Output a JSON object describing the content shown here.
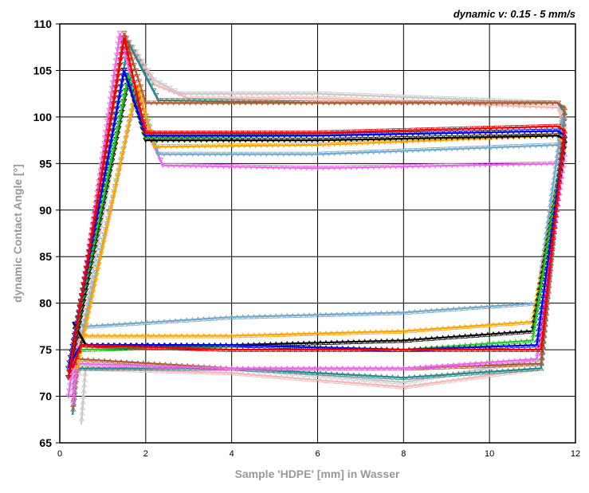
{
  "chart_data": {
    "type": "line",
    "title": "dynamic v: 0.15 - 5 mm/s",
    "xlabel": "Sample 'HDPE' [mm] in Wasser",
    "ylabel": "dynamic Contact Angle [°]",
    "xlim": [
      0,
      12
    ],
    "ylim": [
      65,
      110
    ],
    "xticks": [
      "0",
      "2",
      "4",
      "6",
      "8",
      "10",
      "12"
    ],
    "yticks": [
      "65",
      "70",
      "75",
      "80",
      "85",
      "90",
      "95",
      "100",
      "105",
      "110"
    ],
    "grid": true,
    "series": [
      {
        "name": "gray",
        "color": "#c8c8c8",
        "points": [
          [
            0.3,
            71
          ],
          [
            1.7,
            107.5
          ],
          [
            2.2,
            104
          ],
          [
            2.8,
            102.5
          ],
          [
            6,
            102.5
          ],
          [
            11.6,
            101.5
          ],
          [
            11.75,
            100
          ],
          [
            11.2,
            74
          ],
          [
            8,
            71.5
          ],
          [
            4,
            73
          ],
          [
            0.6,
            73
          ],
          [
            0.5,
            67
          ]
        ]
      },
      {
        "name": "pink",
        "color": "#f4b8b8",
        "points": [
          [
            0.3,
            72
          ],
          [
            1.5,
            109
          ],
          [
            2.2,
            103.5
          ],
          [
            3,
            102
          ],
          [
            6,
            102
          ],
          [
            11.6,
            101
          ],
          [
            11.75,
            99
          ],
          [
            11.2,
            73
          ],
          [
            8,
            71
          ],
          [
            4,
            72.5
          ],
          [
            0.5,
            73
          ],
          [
            0.3,
            71
          ]
        ]
      },
      {
        "name": "teal",
        "color": "#2a8a8a",
        "points": [
          [
            0.2,
            72
          ],
          [
            1.6,
            108
          ],
          [
            2.3,
            101.8
          ],
          [
            6,
            101.5
          ],
          [
            11.6,
            101.5
          ],
          [
            11.75,
            100.5
          ],
          [
            11.2,
            73
          ],
          [
            8,
            72
          ],
          [
            4,
            73
          ],
          [
            0.4,
            73
          ],
          [
            0.3,
            68
          ]
        ]
      },
      {
        "name": "brown",
        "color": "#b05a30",
        "points": [
          [
            0.2,
            72
          ],
          [
            1.5,
            109
          ],
          [
            2,
            101.5
          ],
          [
            6,
            101.5
          ],
          [
            11.6,
            101.5
          ],
          [
            11.75,
            101
          ],
          [
            11.2,
            73.5
          ],
          [
            8,
            73
          ],
          [
            4,
            73
          ],
          [
            0.4,
            74
          ],
          [
            0.3,
            68.5
          ]
        ]
      },
      {
        "name": "magenta",
        "color": "#ee66ee",
        "points": [
          [
            0.2,
            70
          ],
          [
            1.4,
            109
          ],
          [
            1.9,
            100
          ],
          [
            2.4,
            94.8
          ],
          [
            6,
            94.5
          ],
          [
            11.6,
            95
          ],
          [
            11.75,
            96
          ],
          [
            11.1,
            74
          ],
          [
            8,
            73
          ],
          [
            4,
            73
          ],
          [
            0.4,
            73.5
          ],
          [
            0.3,
            69
          ]
        ]
      },
      {
        "name": "lightblue",
        "color": "#74a8cc",
        "points": [
          [
            0.4,
            74
          ],
          [
            1.8,
            103
          ],
          [
            2.3,
            96
          ],
          [
            6,
            96
          ],
          [
            11.6,
            97
          ],
          [
            11.7,
            100
          ],
          [
            11.1,
            80
          ],
          [
            8,
            79
          ],
          [
            4,
            78.5
          ],
          [
            0.6,
            77.5
          ],
          [
            0.4,
            78
          ]
        ]
      },
      {
        "name": "orange",
        "color": "#ffa500",
        "points": [
          [
            0.4,
            73
          ],
          [
            1.8,
            103.5
          ],
          [
            2.2,
            96.8
          ],
          [
            6,
            97
          ],
          [
            11.6,
            98
          ],
          [
            11.75,
            97
          ],
          [
            11,
            78
          ],
          [
            8,
            77
          ],
          [
            4,
            76.5
          ],
          [
            0.5,
            76.5
          ],
          [
            0.3,
            76.5
          ]
        ]
      },
      {
        "name": "black",
        "color": "#000000",
        "points": [
          [
            0.2,
            72
          ],
          [
            1.6,
            104
          ],
          [
            2,
            97.5
          ],
          [
            6,
            97.5
          ],
          [
            11.6,
            98
          ],
          [
            11.75,
            97.5
          ],
          [
            11,
            77
          ],
          [
            8,
            76
          ],
          [
            4,
            75.5
          ],
          [
            0.6,
            75.5
          ],
          [
            0.3,
            78
          ]
        ]
      },
      {
        "name": "green",
        "color": "#22cc22",
        "points": [
          [
            0.2,
            73
          ],
          [
            1.6,
            104.5
          ],
          [
            2,
            97.8
          ],
          [
            6,
            98
          ],
          [
            11.6,
            98.5
          ],
          [
            11.75,
            98
          ],
          [
            11,
            76
          ],
          [
            8,
            75
          ],
          [
            4,
            75.5
          ],
          [
            0.5,
            75
          ],
          [
            0.3,
            74
          ]
        ]
      },
      {
        "name": "blue",
        "color": "#0000ee",
        "points": [
          [
            0.2,
            73
          ],
          [
            1.5,
            105
          ],
          [
            2,
            98
          ],
          [
            6,
            98
          ],
          [
            11.6,
            98.5
          ],
          [
            11.75,
            98
          ],
          [
            11.1,
            75.5
          ],
          [
            8,
            75
          ],
          [
            4,
            75.5
          ],
          [
            0.5,
            75.5
          ],
          [
            0.3,
            74
          ]
        ]
      },
      {
        "name": "red",
        "color": "#ee0000",
        "points": [
          [
            0.2,
            72
          ],
          [
            1.5,
            108.5
          ],
          [
            2,
            98.3
          ],
          [
            6,
            98.3
          ],
          [
            11.6,
            99
          ],
          [
            11.75,
            98.5
          ],
          [
            11.2,
            75
          ],
          [
            8,
            75
          ],
          [
            4,
            75
          ],
          [
            0.5,
            75.5
          ],
          [
            0.3,
            73
          ]
        ]
      }
    ]
  }
}
